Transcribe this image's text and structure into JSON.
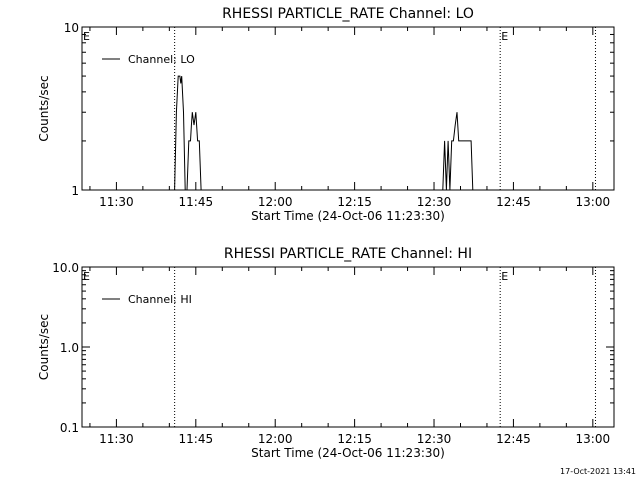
{
  "footer": {
    "timestamp": "17-Oct-2021 13:41"
  },
  "chart_data": [
    {
      "type": "line",
      "title": "RHESSI PARTICLE_RATE Channel: LO",
      "xlabel": "Start Time (24-Oct-06 11:23:30)",
      "ylabel": "Counts/sec",
      "yscale": "log",
      "ylim": [
        1,
        10
      ],
      "yticks": [
        1,
        10
      ],
      "ytick_labels": [
        "1",
        "10"
      ],
      "xlim": [
        "11:23:30",
        "13:04:00"
      ],
      "xticks": [
        "11:30",
        "11:45",
        "12:00",
        "12:15",
        "12:30",
        "12:45",
        "13:00"
      ],
      "legend": {
        "position": "top-left",
        "entries": [
          "Channel: LO"
        ]
      },
      "markers": [
        {
          "x": "11:23:30",
          "label": "E"
        },
        {
          "x": "11:41:00",
          "label": ""
        },
        {
          "x": "12:42:30",
          "label": "E"
        },
        {
          "x": "13:00:30",
          "label": ""
        }
      ],
      "series": [
        {
          "name": "Channel: LO",
          "x": [
            "11:41:00",
            "11:41:20",
            "11:41:40",
            "11:42:00",
            "11:42:10",
            "11:42:20",
            "11:42:40",
            "11:43:00",
            "11:43:20",
            "11:43:40",
            "11:44:00",
            "11:44:10",
            "11:44:20",
            "11:44:40",
            "11:45:00",
            "11:45:20",
            "11:45:40",
            "11:46:00",
            "11:46:20",
            "12:31:40",
            "12:32:00",
            "12:32:20",
            "12:32:40",
            "12:33:00",
            "12:33:20",
            "12:33:40",
            "12:34:00",
            "12:34:20",
            "12:34:40",
            "12:35:00",
            "12:36:00",
            "12:37:00",
            "12:37:20"
          ],
          "y": [
            1,
            3,
            5,
            5,
            4.5,
            5,
            3,
            1,
            1,
            2,
            2,
            2.5,
            3,
            2.5,
            3,
            2,
            2,
            1,
            1,
            1,
            2,
            1,
            2,
            1,
            2,
            2,
            2.5,
            3,
            2,
            2,
            2,
            2,
            1
          ]
        }
      ]
    },
    {
      "type": "line",
      "title": "RHESSI PARTICLE_RATE Channel: HI",
      "xlabel": "Start Time (24-Oct-06 11:23:30)",
      "ylabel": "Counts/sec",
      "yscale": "log",
      "ylim": [
        0.1,
        10
      ],
      "yticks": [
        0.1,
        1,
        10
      ],
      "ytick_labels": [
        "0.1",
        "1.0",
        "10.0"
      ],
      "xlim": [
        "11:23:30",
        "13:04:00"
      ],
      "xticks": [
        "11:30",
        "11:45",
        "12:00",
        "12:15",
        "12:30",
        "12:45",
        "13:00"
      ],
      "legend": {
        "position": "top-left",
        "entries": [
          "Channel: HI"
        ]
      },
      "markers": [
        {
          "x": "11:23:30",
          "label": "E"
        },
        {
          "x": "11:41:00",
          "label": ""
        },
        {
          "x": "12:42:30",
          "label": "E"
        },
        {
          "x": "13:00:30",
          "label": ""
        }
      ],
      "series": [
        {
          "name": "Channel: HI",
          "x": [],
          "y": []
        }
      ]
    }
  ]
}
